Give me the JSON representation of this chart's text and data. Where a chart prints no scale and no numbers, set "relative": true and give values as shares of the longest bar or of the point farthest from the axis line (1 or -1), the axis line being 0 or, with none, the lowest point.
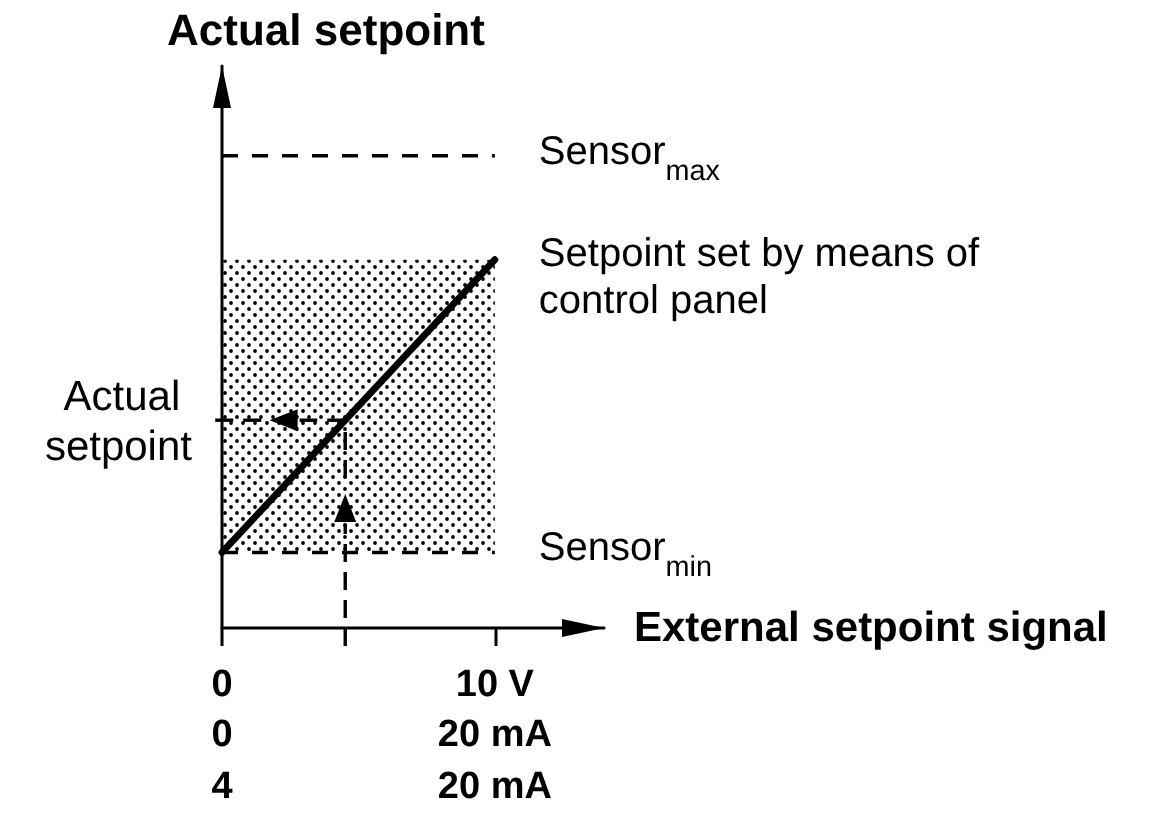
{
  "chart_data": {
    "type": "line",
    "xlabel": "External setpoint signal",
    "ylabel": "Actual setpoint",
    "relative": true,
    "x": [
      0,
      10
    ],
    "series": [
      {
        "color": "#000000",
        "values": [
          0.16,
          0.78
        ],
        "lower": [
          0.16,
          0.16
        ],
        "upper": [
          0.78,
          0.78
        ]
      },
      {
        "name": "Sensor$_{max}$",
        "color": "#000000",
        "values": [
          1,
          1
        ],
        "line_style": "dashed"
      },
      {
        "name": "Sensor$_{min}$",
        "color": "#000000",
        "values": [
          0.16,
          0.16
        ],
        "line_style": "dashed"
      }
    ],
    "xlim": [
      0,
      14
    ],
    "xticks": [
      0,
      {
        "value": 10,
        "label": "10 V"
      }
    ],
    "x2lim": [
      0,
      28
    ],
    "x2ticks": [
      0,
      {
        "value": 20,
        "label": "20 mA"
      }
    ],
    "annotations": [
      {
        "text": "Actual setpoint",
        "x": 0,
        "y": 0.44
      },
      "Setpoint set by means of control panel",
      "4",
      "20 mA"
    ]
  }
}
